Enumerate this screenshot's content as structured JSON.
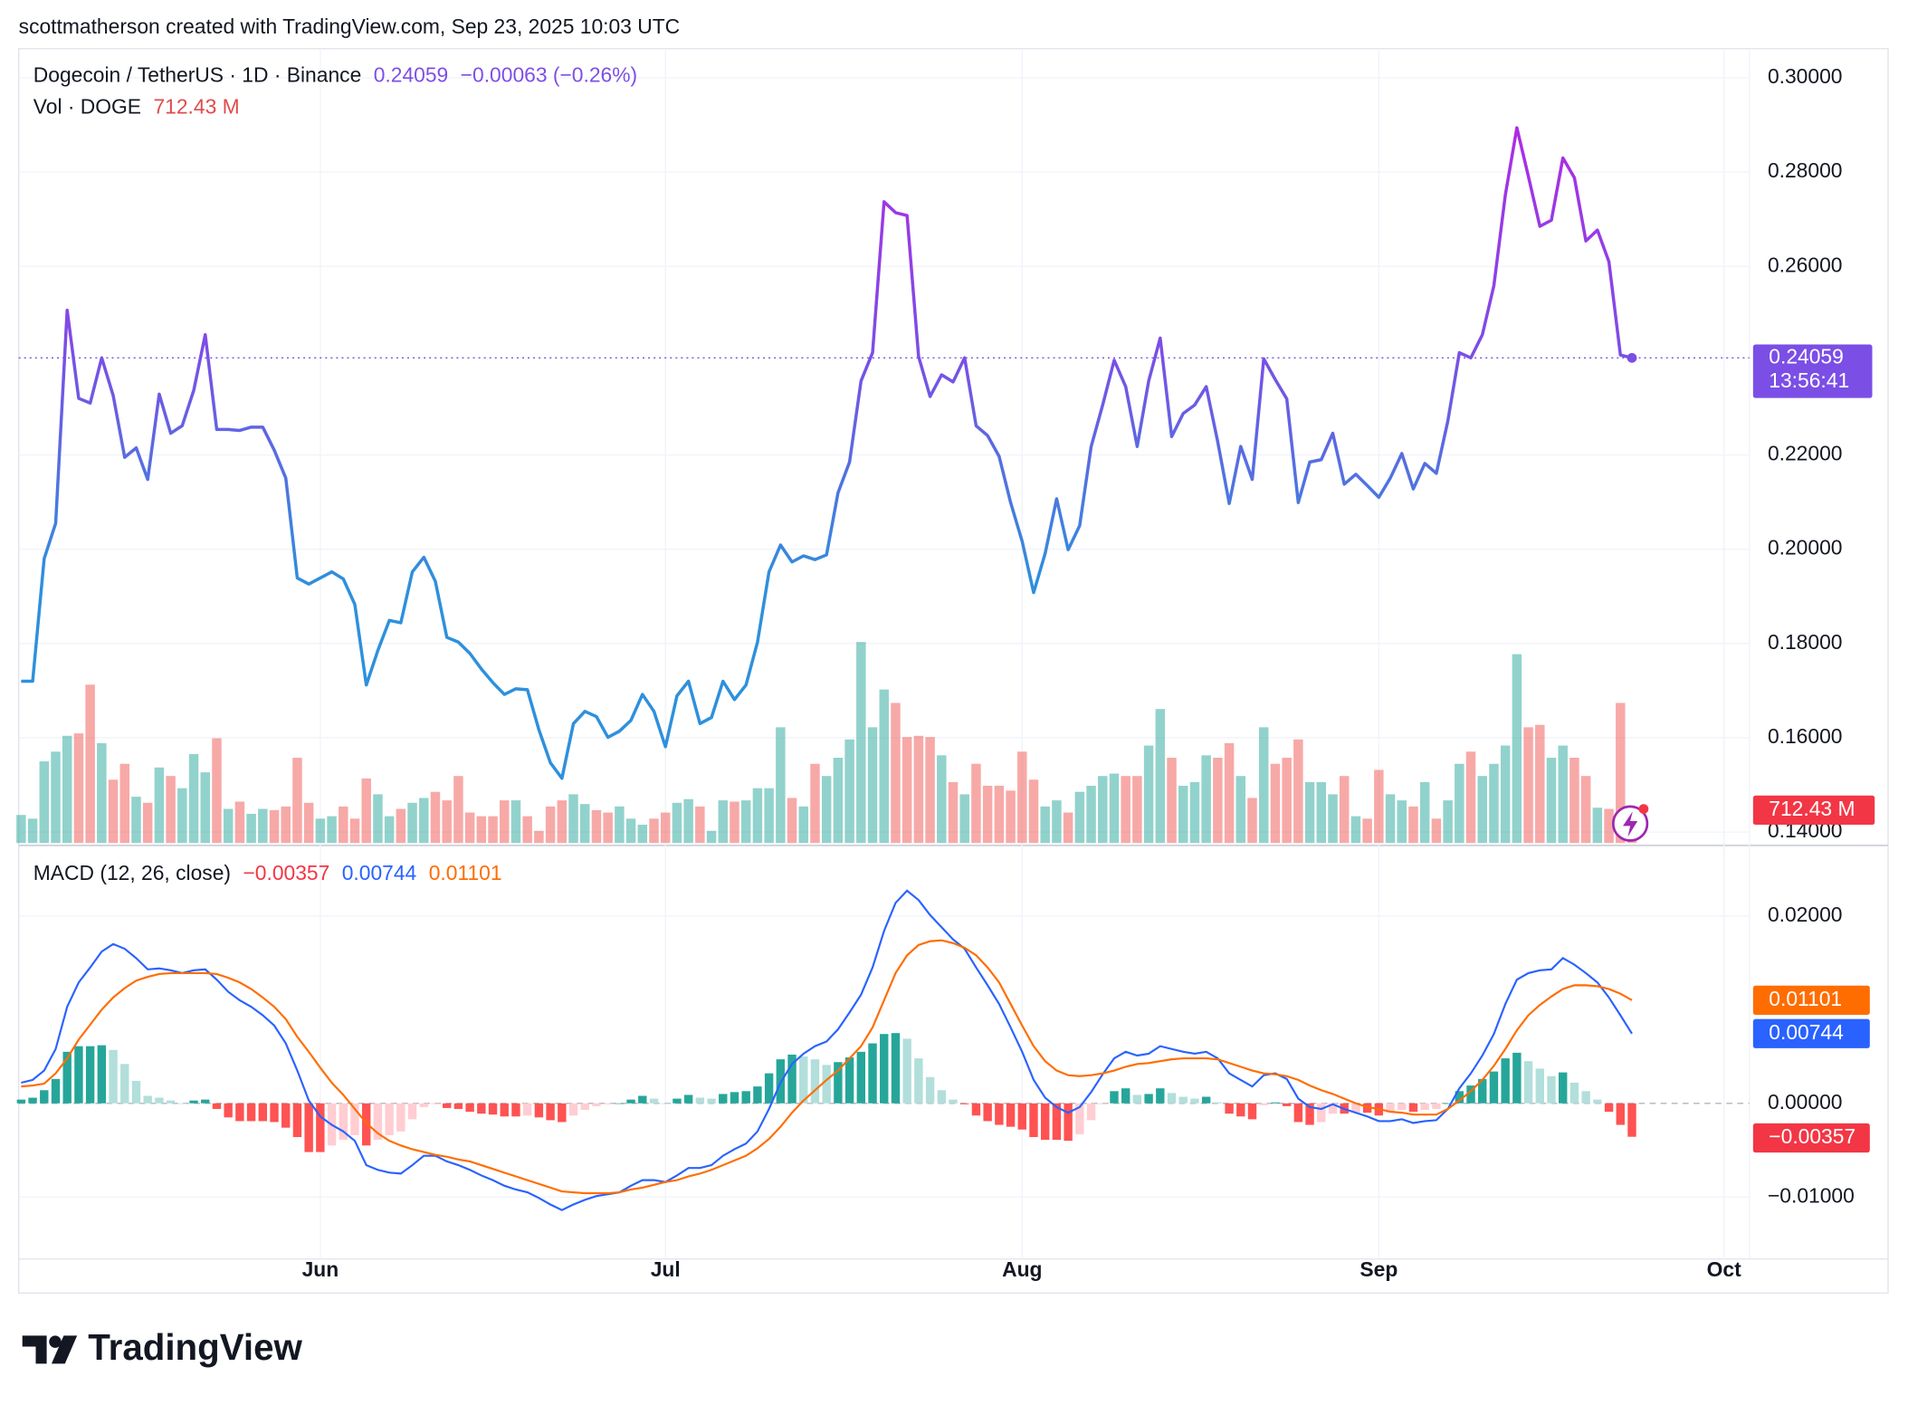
{
  "header": "scottmatherson created with TradingView.com, Sep 23, 2025 10:03 UTC",
  "footer": {
    "logo": "TradingView"
  },
  "chart_data": [
    {
      "type": "line",
      "title": "Dogecoin / TetherUS · 1D · Binance",
      "change": "−0.00063 (−0.26%)",
      "countdown": "13:56:41",
      "categories": [
        null,
        null,
        null,
        null,
        null,
        null,
        null,
        null,
        null,
        null,
        null,
        null,
        null,
        null,
        null,
        null,
        null,
        null,
        null,
        null,
        null,
        null,
        null,
        null,
        null,
        null,
        "Jun",
        null,
        null,
        null,
        null,
        null,
        null,
        null,
        null,
        null,
        null,
        null,
        null,
        null,
        null,
        null,
        null,
        null,
        null,
        null,
        null,
        null,
        null,
        null,
        null,
        null,
        null,
        null,
        null,
        null,
        "Jul",
        null,
        null,
        null,
        null,
        null,
        null,
        null,
        null,
        null,
        null,
        null,
        null,
        null,
        null,
        null,
        null,
        null,
        null,
        null,
        null,
        null,
        null,
        null,
        null,
        null,
        null,
        null,
        null,
        null,
        null,
        "Aug",
        null,
        null,
        null,
        null,
        null,
        null,
        null,
        null,
        null,
        null,
        null,
        null,
        null,
        null,
        null,
        null,
        null,
        null,
        null,
        null,
        null,
        null,
        null,
        null,
        null,
        null,
        null,
        null,
        null,
        null,
        "Sep",
        null,
        null,
        null,
        null,
        null,
        null,
        null,
        null,
        null,
        null,
        null,
        null,
        null,
        null,
        null,
        null,
        null,
        null,
        null,
        null,
        null,
        null,
        null,
        null,
        null,
        null,
        null,
        null,
        null,
        "Oct"
      ],
      "values": [
        0.172,
        0.172,
        0.198,
        0.2055,
        0.2507,
        0.232,
        0.231,
        0.2406,
        0.2326,
        0.2195,
        0.2215,
        0.2148,
        0.2329,
        0.2246,
        0.2262,
        0.2337,
        0.2455,
        0.2254,
        0.2254,
        0.2252,
        0.2259,
        0.2259,
        0.221,
        0.2151,
        0.1939,
        0.1926,
        0.1939,
        0.1952,
        0.1937,
        0.1883,
        0.1712,
        0.1785,
        0.1849,
        0.1844,
        0.1952,
        0.1983,
        0.1932,
        0.1813,
        0.1803,
        0.1779,
        0.1746,
        0.1717,
        0.1692,
        0.1704,
        0.1702,
        0.1617,
        0.1547,
        0.1514,
        0.163,
        0.1656,
        0.1645,
        0.1601,
        0.1614,
        0.1637,
        0.1692,
        0.1656,
        0.1581,
        0.1689,
        0.172,
        0.163,
        0.1643,
        0.172,
        0.1681,
        0.1712,
        0.1803,
        0.1952,
        0.2009,
        0.1973,
        0.1986,
        0.1978,
        0.1988,
        0.212,
        0.2185,
        0.2357,
        0.2417,
        0.2737,
        0.2714,
        0.2708,
        0.2409,
        0.2324,
        0.237,
        0.2355,
        0.2406,
        0.2262,
        0.2241,
        0.2197,
        0.2099,
        0.2017,
        0.1908,
        0.1991,
        0.2107,
        0.1999,
        0.205,
        0.2218,
        0.2306,
        0.2401,
        0.2345,
        0.2218,
        0.2357,
        0.2448,
        0.2239,
        0.2288,
        0.2306,
        0.2345,
        0.2228,
        0.2097,
        0.2218,
        0.2148,
        0.2404,
        0.236,
        0.2319,
        0.2099,
        0.2185,
        0.219,
        0.2246,
        0.2138,
        0.2159,
        0.2135,
        0.211,
        0.2151,
        0.2203,
        0.2128,
        0.2182,
        0.2161,
        0.2272,
        0.2417,
        0.2406,
        0.2455,
        0.2559,
        0.2752,
        0.2894,
        0.2791,
        0.2685,
        0.2698,
        0.283,
        0.2788,
        0.2654,
        0.2677,
        0.261,
        0.2412,
        0.24059,
        null,
        null,
        null,
        null,
        null,
        null,
        null,
        null
      ],
      "colors": [
        "#b02ae4",
        "#7b4ee6",
        "#2e90dc"
      ],
      "ylim": [
        0.13768,
        0.30619
      ],
      "yticks": [
        {
          "value": 0.3,
          "label": "0.30000"
        },
        {
          "value": 0.28,
          "label": "0.28000"
        },
        {
          "value": 0.26,
          "label": "0.26000"
        },
        {
          "value": 0.22,
          "label": "0.22000"
        },
        {
          "value": 0.2,
          "label": "0.20000"
        },
        {
          "value": 0.18,
          "label": "0.18000"
        },
        {
          "value": 0.16,
          "label": "0.16000"
        },
        {
          "value": 0.14,
          "label": "0.14000"
        }
      ],
      "grid": true
    },
    {
      "type": "bar",
      "title": "Vol · DOGE",
      "last_label": "712.43 M",
      "values": [
        566,
        492,
        1648,
        1845,
        2165,
        2214,
        3198,
        2017,
        1279,
        1599,
        935,
        812,
        1525,
        1353,
        1107,
        1796,
        1427,
        2116,
        689,
        836,
        590,
        689,
        664,
        738,
        1722,
        812,
        492,
        541,
        738,
        492,
        1304,
        984,
        541,
        689,
        812,
        910,
        1033,
        861,
        1353,
        615,
        541,
        541,
        861,
        861,
        541,
        246,
        738,
        861,
        984,
        787,
        664,
        615,
        738,
        492,
        369,
        492,
        615,
        812,
        886,
        738,
        246,
        861,
        836,
        861,
        1107,
        1107,
        2337,
        910,
        738,
        1599,
        1353,
        1722,
        2091,
        4059,
        2337,
        3100,
        2829,
        2140,
        2165,
        2140,
        1771,
        1230,
        984,
        1599,
        1156,
        1156,
        1058,
        1845,
        1279,
        738,
        861,
        615,
        1033,
        1156,
        1353,
        1402,
        1353,
        1353,
        1968,
        2706,
        1722,
        1156,
        1230,
        1771,
        1722,
        2017,
        1353,
        910,
        2337,
        1599,
        1722,
        2091,
        1230,
        1230,
        984,
        1353,
        541,
        492,
        1476,
        984,
        861,
        738,
        1230,
        492,
        861,
        1599,
        1845,
        1353,
        1599,
        1968,
        3813,
        2337,
        2386,
        1722,
        1968,
        1722,
        1353,
        713,
        689,
        2829,
        712.43,
        null,
        null,
        null,
        null,
        null,
        null,
        null,
        null
      ],
      "up_color": "#26a69a",
      "down_color": "#ef5350"
    },
    {
      "type": "macd",
      "title": "MACD (12, 26, close)",
      "last_label": "−0.00357",
      "series": [
        {
          "values": [
            0.0004,
            0.0006,
            0.0014,
            0.0026,
            0.0055,
            0.0061,
            0.0061,
            0.0062,
            0.0057,
            0.0042,
            0.0024,
            0.0008,
            0.0006,
            0.0003,
            0,
            0.0003,
            0.0004,
            -0.0006,
            -0.0015,
            -0.0019,
            -0.0019,
            -0.0019,
            -0.002,
            -0.0026,
            -0.0036,
            -0.0052,
            -0.0052,
            -0.0045,
            -0.0039,
            -0.0034,
            -0.0045,
            -0.0039,
            -0.0034,
            -0.003,
            -0.0017,
            -0.0004,
            -0.0001,
            -0.0005,
            -0.0006,
            -0.0009,
            -0.0011,
            -0.0012,
            -0.0014,
            -0.0014,
            -0.0013,
            -0.0015,
            -0.0018,
            -0.002,
            -0.0013,
            -0.0007,
            -0.0003,
            -0.0001,
            0,
            0.0004,
            0.0008,
            0.0005,
            0,
            0.0005,
            0.0009,
            0.0006,
            0.0005,
            0.001,
            0.0012,
            0.0013,
            0.0018,
            0.0032,
            0.0047,
            0.0052,
            0.005,
            0.0047,
            0.0041,
            0.0044,
            0.0049,
            0.0055,
            0.0064,
            0.0074,
            0.0075,
            0.0069,
            0.0048,
            0.0028,
            0.0014,
            0.0004,
            -0.0001,
            -0.0013,
            -0.0019,
            -0.0023,
            -0.0025,
            -0.0028,
            -0.0036,
            -0.0039,
            -0.0039,
            -0.004,
            -0.0033,
            -0.0018,
            -0.0001,
            0.0013,
            0.0016,
            0.0009,
            0.001,
            0.0016,
            0.0011,
            0.0007,
            0.0005,
            0.0007,
            0.0001,
            -0.0011,
            -0.0014,
            -0.0017,
            -0.0002,
            0.0001,
            -0.0003,
            -0.002,
            -0.0023,
            -0.002,
            -0.0011,
            -0.0011,
            -0.001,
            -0.001,
            -0.0013,
            -0.001,
            -0.0007,
            -0.0009,
            -0.0007,
            -0.0006,
            0,
            0.0013,
            0.0019,
            0.0026,
            0.0034,
            0.0048,
            0.0054,
            0.0045,
            0.0037,
            0.0029,
            0.0033,
            0.0022,
            0.0013,
            0.0004,
            -0.0009,
            -0.0023,
            -0.00357,
            null,
            null,
            null,
            null,
            null,
            null,
            null,
            null
          ],
          "colors": [
            "#26a69a",
            "#b2dfdb",
            "#ff5252",
            "#ffcdd2"
          ]
        },
        {
          "values": [
            0.0022,
            0.0025,
            0.0035,
            0.0058,
            0.0103,
            0.0129,
            0.0145,
            0.0162,
            0.017,
            0.0165,
            0.0155,
            0.0143,
            0.0144,
            0.0142,
            0.0139,
            0.0142,
            0.0143,
            0.0132,
            0.0119,
            0.011,
            0.0103,
            0.0094,
            0.0083,
            0.0064,
            0.0035,
            0.0003,
            -0.0014,
            -0.0023,
            -0.003,
            -0.004,
            -0.0066,
            -0.0071,
            -0.0074,
            -0.0075,
            -0.0066,
            -0.0056,
            -0.0056,
            -0.0062,
            -0.0066,
            -0.0071,
            -0.0077,
            -0.0082,
            -0.0088,
            -0.0092,
            -0.0095,
            -0.0101,
            -0.0108,
            -0.0114,
            -0.0108,
            -0.0103,
            -0.0099,
            -0.0097,
            -0.0095,
            -0.0088,
            -0.0082,
            -0.0082,
            -0.0084,
            -0.0077,
            -0.0069,
            -0.0069,
            -0.0066,
            -0.0056,
            -0.0049,
            -0.0043,
            -0.003,
            -0.0006,
            0.0022,
            0.0042,
            0.0053,
            0.0061,
            0.0066,
            0.0079,
            0.0097,
            0.0116,
            0.0145,
            0.0184,
            0.0214,
            0.0227,
            0.0217,
            0.0201,
            0.0188,
            0.0175,
            0.0165,
            0.0145,
            0.0126,
            0.0106,
            0.0081,
            0.0055,
            0.0025,
            0.0006,
            -0.0004,
            -0.001,
            -0.0004,
            0.0012,
            0.0031,
            0.0048,
            0.0055,
            0.0051,
            0.0053,
            0.0061,
            0.0058,
            0.0055,
            0.0053,
            0.0055,
            0.0048,
            0.0032,
            0.0025,
            0.0018,
            0.003,
            0.0032,
            0.0026,
            0.0005,
            -0.0004,
            -0.0006,
            -0.0001,
            -0.0006,
            -0.001,
            -0.0014,
            -0.0019,
            -0.0019,
            -0.0017,
            -0.0021,
            -0.0019,
            -0.0018,
            -0.0006,
            0.0016,
            0.0032,
            0.0051,
            0.0074,
            0.0106,
            0.0132,
            0.0139,
            0.0142,
            0.0143,
            0.0155,
            0.0148,
            0.0139,
            0.0129,
            0.0113,
            0.0094,
            0.00744,
            null,
            null,
            null,
            null,
            null,
            null,
            null,
            null
          ],
          "color": "#2962ff"
        },
        {
          "values": [
            0.0018,
            0.0019,
            0.0021,
            0.0032,
            0.0048,
            0.0068,
            0.0084,
            0.01,
            0.0113,
            0.0123,
            0.0131,
            0.0135,
            0.0138,
            0.0139,
            0.0139,
            0.0139,
            0.0139,
            0.0138,
            0.0134,
            0.0129,
            0.0122,
            0.0113,
            0.0103,
            0.009,
            0.0071,
            0.0055,
            0.0038,
            0.0022,
            0.0009,
            -0.0006,
            -0.0021,
            -0.0032,
            -0.004,
            -0.0045,
            -0.0049,
            -0.0052,
            -0.0055,
            -0.0057,
            -0.006,
            -0.0062,
            -0.0066,
            -0.007,
            -0.0074,
            -0.0078,
            -0.0082,
            -0.0086,
            -0.009,
            -0.0094,
            -0.0095,
            -0.0096,
            -0.0096,
            -0.0096,
            -0.0095,
            -0.0092,
            -0.009,
            -0.0087,
            -0.0084,
            -0.0082,
            -0.0078,
            -0.0075,
            -0.0071,
            -0.0066,
            -0.0061,
            -0.0056,
            -0.0048,
            -0.0038,
            -0.0025,
            -0.001,
            0.0003,
            0.0014,
            0.0025,
            0.0035,
            0.0048,
            0.0061,
            0.0081,
            0.011,
            0.0139,
            0.0158,
            0.0169,
            0.0173,
            0.0174,
            0.0171,
            0.0166,
            0.0158,
            0.0145,
            0.0129,
            0.0106,
            0.0083,
            0.0061,
            0.0045,
            0.0035,
            0.003,
            0.0029,
            0.003,
            0.0032,
            0.0035,
            0.0039,
            0.0042,
            0.0043,
            0.0045,
            0.0047,
            0.0048,
            0.0048,
            0.0048,
            0.0047,
            0.0043,
            0.0039,
            0.0035,
            0.0032,
            0.0031,
            0.0029,
            0.0025,
            0.0019,
            0.0014,
            0.001,
            0.0005,
            0,
            -0.0004,
            -0.0006,
            -0.0009,
            -0.001,
            -0.0012,
            -0.0012,
            -0.0012,
            -0.0006,
            0.0003,
            0.0013,
            0.0025,
            0.004,
            0.0058,
            0.0078,
            0.0094,
            0.0105,
            0.0114,
            0.0122,
            0.0126,
            0.0126,
            0.0125,
            0.0122,
            0.0117,
            0.01101,
            null,
            null,
            null,
            null,
            null,
            null,
            null,
            null
          ],
          "color": "#ff6d00"
        }
      ],
      "ylim": [
        -0.01662,
        0.02688
      ],
      "yticks": [
        {
          "value": 0.02,
          "label": "0.02000"
        },
        {
          "value": 0,
          "label": "0.00000"
        },
        {
          "value": -0.01,
          "label": "−0.01000"
        }
      ],
      "grid": true
    }
  ]
}
